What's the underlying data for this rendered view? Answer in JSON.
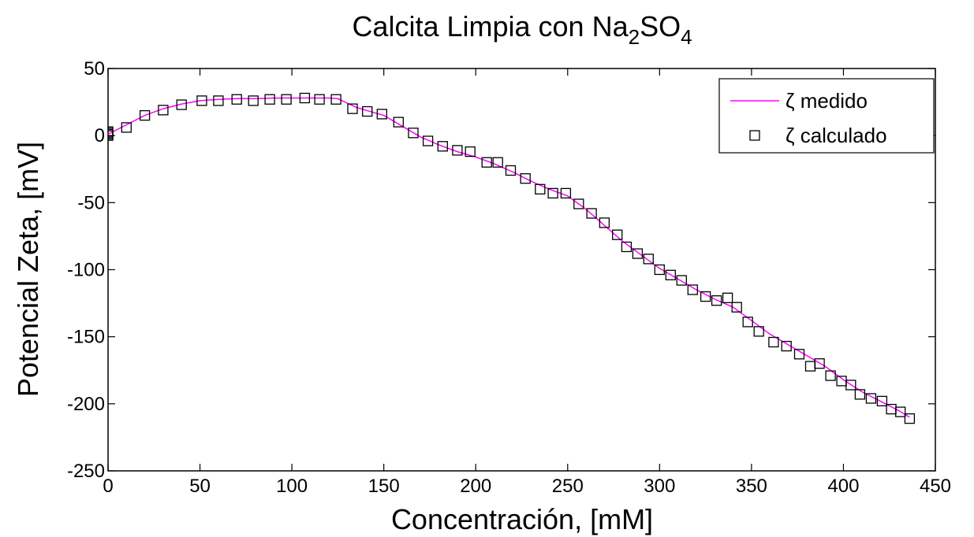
{
  "chart_data": {
    "type": "line",
    "title": {
      "prefix": "Calcita Limpia con Na",
      "sub1": "2",
      "middle": "SO",
      "sub2": "4"
    },
    "xlabel": "Concentración, [mM]",
    "ylabel": "Potencial Zeta, [mV]",
    "xlim": [
      0,
      450
    ],
    "ylim": [
      -250,
      50
    ],
    "xticks": [
      0,
      50,
      100,
      150,
      200,
      250,
      300,
      350,
      400,
      450
    ],
    "yticks": [
      50,
      0,
      -50,
      -100,
      -150,
      -200,
      -250
    ],
    "grid": false,
    "legend_position": "top-right",
    "series": [
      {
        "name": "ζ medido",
        "style": "line",
        "color": "#ff00ff",
        "x": [
          0,
          10,
          20,
          30,
          40,
          50,
          60,
          70,
          80,
          90,
          100,
          110,
          120,
          125,
          135,
          145,
          150,
          160,
          170,
          180,
          190,
          200,
          210,
          220,
          230,
          240,
          250,
          260,
          270,
          280,
          290,
          300,
          310,
          320,
          330,
          340,
          350,
          360,
          370,
          380,
          390,
          400,
          410,
          420,
          430,
          436
        ],
        "y": [
          1,
          8,
          15,
          20,
          23.5,
          26,
          27,
          27.5,
          27.5,
          28,
          28,
          28,
          28,
          27.5,
          21,
          17,
          15,
          7,
          -1,
          -7,
          -12,
          -16,
          -21,
          -27,
          -34,
          -40,
          -45,
          -55,
          -67,
          -79,
          -89,
          -99,
          -107,
          -115,
          -122,
          -128,
          -138,
          -148,
          -156,
          -164,
          -172,
          -182,
          -191,
          -198,
          -205,
          -210
        ]
      },
      {
        "name": "ζ calculado",
        "style": "markers",
        "marker": "square",
        "color": "#000000",
        "x": [
          0,
          0,
          0,
          0,
          10,
          20,
          30,
          40,
          51,
          60,
          70,
          79,
          88,
          97,
          107,
          115,
          124,
          133,
          141,
          149,
          158,
          166,
          174,
          182,
          190,
          197,
          206,
          212,
          219,
          227,
          235,
          242,
          249,
          256,
          263,
          270,
          277,
          282,
          288,
          294,
          300,
          306,
          312,
          318,
          325,
          331,
          337,
          342,
          348,
          354,
          362,
          369,
          376,
          382,
          387,
          393,
          399,
          404,
          409,
          415,
          421,
          426,
          431,
          436
        ],
        "y": [
          0,
          1,
          2,
          3,
          6,
          15,
          19,
          23,
          26,
          26,
          27,
          26,
          27,
          27,
          28,
          27,
          27,
          20,
          18,
          16,
          10,
          2,
          -4,
          -8,
          -11,
          -12,
          -20,
          -20,
          -26,
          -32,
          -40,
          -43,
          -43,
          -51,
          -58,
          -65,
          -74,
          -83,
          -88,
          -92,
          -100,
          -104,
          -108,
          -115,
          -120,
          -123,
          -121,
          -128,
          -139,
          -146,
          -154,
          -157,
          -163,
          -172,
          -170,
          -179,
          -183,
          -186,
          -193,
          -196,
          -198,
          -204,
          -206,
          -211
        ]
      }
    ]
  }
}
